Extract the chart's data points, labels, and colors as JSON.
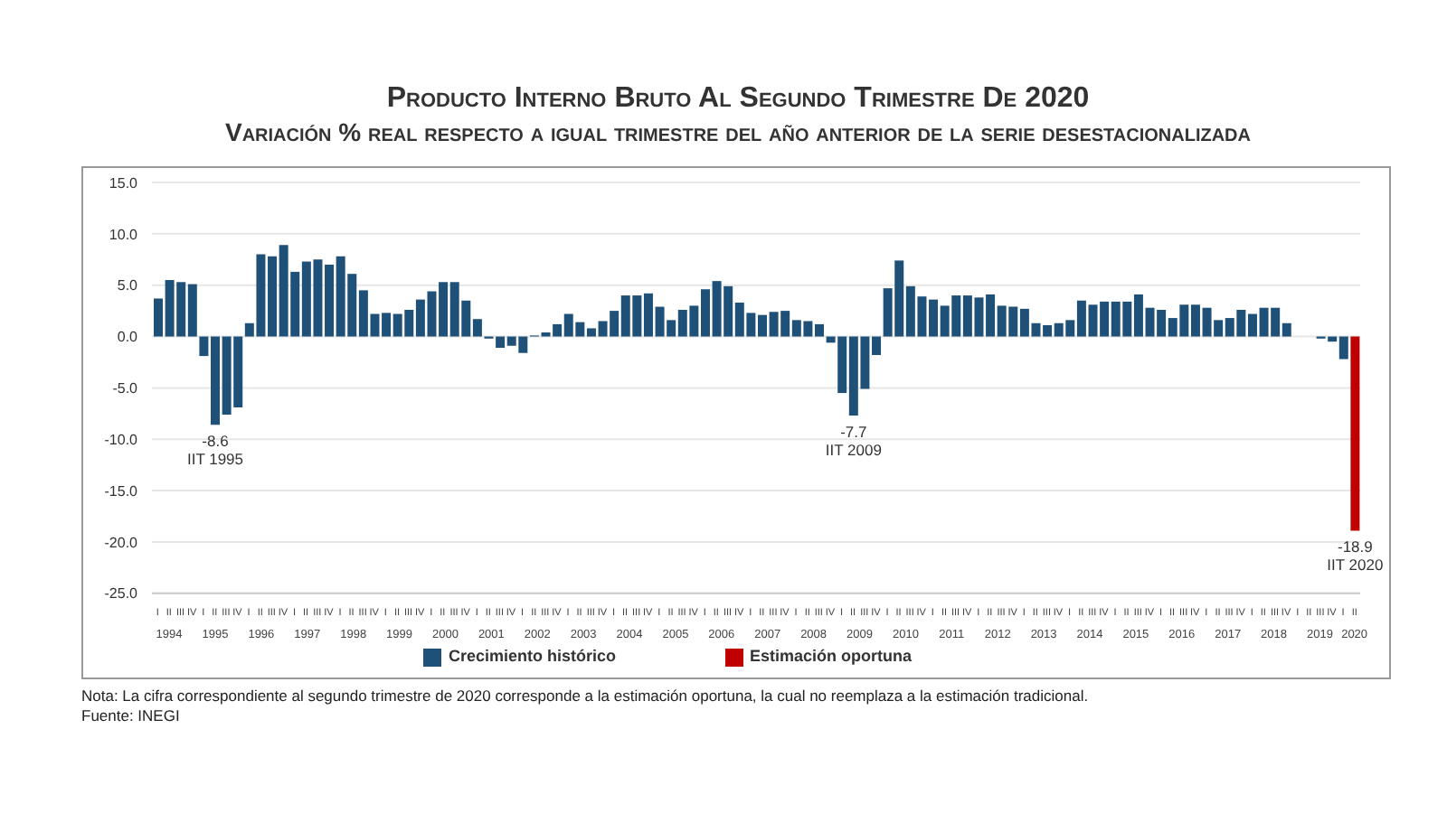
{
  "chart_data": {
    "type": "bar",
    "title": "Producto Interno Bruto Al Segundo Trimestre De 2020",
    "subtitle": "Variación % real respecto a igual trimestre del año anterior de la serie desestacionalizada",
    "categories": [
      "I",
      "II",
      "III",
      "IV",
      "I",
      "II",
      "III",
      "IV",
      "I",
      "II",
      "III",
      "IV",
      "I",
      "II",
      "III",
      "IV",
      "I",
      "II",
      "III",
      "IV",
      "I",
      "II",
      "III",
      "IV",
      "I",
      "II",
      "III",
      "IV",
      "I",
      "II",
      "III",
      "IV",
      "I",
      "II",
      "III",
      "IV",
      "I",
      "II",
      "III",
      "IV",
      "I",
      "II",
      "III",
      "IV",
      "I",
      "II",
      "III",
      "IV",
      "I",
      "II",
      "III",
      "IV",
      "I",
      "II",
      "III",
      "IV",
      "I",
      "II",
      "III",
      "IV",
      "I",
      "II",
      "III",
      "IV",
      "I",
      "II",
      "III",
      "IV",
      "I",
      "II",
      "III",
      "IV",
      "I",
      "II",
      "III",
      "IV",
      "I",
      "II",
      "III",
      "IV",
      "I",
      "II",
      "III",
      "IV",
      "I",
      "II",
      "III",
      "IV",
      "I",
      "II",
      "III",
      "IV",
      "I",
      "II",
      "III",
      "IV",
      "I",
      "II",
      "III",
      "IV",
      "I",
      "II",
      "III",
      "IV",
      "I",
      "II"
    ],
    "series": [
      {
        "name": "Crecimiento histórico",
        "color": "#1f5078",
        "values": [
          3.7,
          5.5,
          5.3,
          5.1,
          -1.9,
          -8.6,
          -7.6,
          -6.9,
          1.3,
          8.0,
          7.8,
          8.9,
          6.3,
          7.3,
          7.5,
          7.0,
          7.8,
          6.1,
          4.5,
          2.2,
          2.3,
          2.2,
          2.6,
          3.6,
          4.4,
          5.3,
          5.3,
          3.5,
          1.7,
          -0.2,
          -1.1,
          -0.9,
          -1.6,
          0.1,
          0.4,
          1.2,
          2.2,
          1.4,
          0.8,
          1.5,
          2.5,
          4.0,
          4.0,
          4.2,
          2.9,
          1.6,
          2.6,
          3.0,
          4.6,
          5.4,
          4.9,
          3.3,
          2.3,
          2.1,
          2.4,
          2.5,
          1.6,
          1.5,
          1.2,
          -0.6,
          -5.5,
          -7.7,
          -5.1,
          -1.8,
          4.7,
          7.4,
          4.9,
          3.9,
          3.6,
          3.0,
          4.0,
          4.0,
          3.8,
          4.1,
          3.0,
          2.9,
          2.7,
          1.3,
          1.1,
          1.3,
          1.6,
          3.5,
          3.1,
          3.4,
          3.4,
          3.4,
          4.1,
          2.8,
          2.6,
          1.8,
          3.1,
          3.1,
          2.8,
          1.6,
          1.8,
          2.6,
          2.2,
          2.8,
          2.8,
          1.3,
          0.0,
          0.0,
          -0.2,
          -0.5,
          -2.2,
          null
        ],
        "value_labels": [
          null,
          null,
          null,
          null,
          null,
          "-8.6\nIIT 1995",
          null,
          null,
          null,
          null,
          null,
          null,
          null,
          null,
          null,
          null,
          null,
          null,
          null,
          null,
          null,
          null,
          null,
          null,
          null,
          null,
          null,
          null,
          null,
          null,
          null,
          null,
          null,
          null,
          null,
          null,
          null,
          null,
          null,
          null,
          null,
          null,
          null,
          null,
          null,
          null,
          null,
          null,
          null,
          null,
          null,
          null,
          null,
          null,
          null,
          null,
          null,
          null,
          null,
          null,
          null,
          "-7.7\nIIT 2009",
          null,
          null,
          null,
          null,
          null,
          null,
          null,
          null,
          null,
          null,
          null,
          null,
          null,
          null,
          null,
          null,
          null,
          null,
          null,
          null,
          null,
          null,
          null,
          null,
          null,
          null,
          null,
          null,
          null,
          null,
          null,
          null,
          null,
          null,
          null,
          null,
          null,
          null,
          null,
          null,
          null,
          null,
          null,
          null
        ]
      },
      {
        "name": "Estimación oportuna",
        "color": "#c00000",
        "values": [
          null,
          null,
          null,
          null,
          null,
          null,
          null,
          null,
          null,
          null,
          null,
          null,
          null,
          null,
          null,
          null,
          null,
          null,
          null,
          null,
          null,
          null,
          null,
          null,
          null,
          null,
          null,
          null,
          null,
          null,
          null,
          null,
          null,
          null,
          null,
          null,
          null,
          null,
          null,
          null,
          null,
          null,
          null,
          null,
          null,
          null,
          null,
          null,
          null,
          null,
          null,
          null,
          null,
          null,
          null,
          null,
          null,
          null,
          null,
          null,
          null,
          null,
          null,
          null,
          null,
          null,
          null,
          null,
          null,
          null,
          null,
          null,
          null,
          null,
          null,
          null,
          null,
          null,
          null,
          null,
          null,
          null,
          null,
          null,
          null,
          null,
          null,
          null,
          null,
          null,
          null,
          null,
          null,
          null,
          null,
          null,
          null,
          null,
          null,
          null,
          null,
          null,
          null,
          null,
          null,
          -18.9
        ],
        "value_labels": [
          null,
          null,
          null,
          null,
          null,
          null,
          null,
          null,
          null,
          null,
          null,
          null,
          null,
          null,
          null,
          null,
          null,
          null,
          null,
          null,
          null,
          null,
          null,
          null,
          null,
          null,
          null,
          null,
          null,
          null,
          null,
          null,
          null,
          null,
          null,
          null,
          null,
          null,
          null,
          null,
          null,
          null,
          null,
          null,
          null,
          null,
          null,
          null,
          null,
          null,
          null,
          null,
          null,
          null,
          null,
          null,
          null,
          null,
          null,
          null,
          null,
          null,
          null,
          null,
          null,
          null,
          null,
          null,
          null,
          null,
          null,
          null,
          null,
          null,
          null,
          null,
          null,
          null,
          null,
          null,
          null,
          null,
          null,
          null,
          null,
          null,
          null,
          null,
          null,
          null,
          null,
          null,
          null,
          null,
          null,
          null,
          null,
          null,
          null,
          null,
          null,
          null,
          null,
          null,
          null,
          "-18.9\nIIT 2020"
        ]
      }
    ],
    "stacked": true,
    "ylim": [
      -25,
      15
    ],
    "yticks": [
      {
        "value": -25,
        "label": "-25.0"
      },
      {
        "value": -20,
        "label": "-20.0"
      },
      {
        "value": -15,
        "label": "-15.0"
      },
      {
        "value": -10,
        "label": "-10.0"
      },
      {
        "value": -5,
        "label": "-5.0"
      },
      {
        "value": 0,
        "label": "0.0"
      },
      {
        "value": 5,
        "label": "5.0"
      },
      {
        "value": 10,
        "label": "10.0"
      },
      {
        "value": 15,
        "label": "15.0"
      }
    ],
    "grid": "y",
    "legend": "bottom",
    "annotations": [
      "1994",
      "1995",
      "1996",
      "1997",
      "1998",
      "1999",
      "2000",
      "2001",
      "2002",
      "2003",
      "2004",
      "2005",
      "2006",
      "2007",
      "2008",
      "2009",
      "2010",
      "2011",
      "2012",
      "2013",
      "2014",
      "2015",
      "2016",
      "2017",
      "2018",
      "2019",
      "2020",
      "Nota: La cifra correspondiente al segundo trimestre de 2020 corresponde a la estimación oportuna, la cual no reemplaza a la estimación tradicional.",
      "Fuente: INEGI"
    ]
  }
}
